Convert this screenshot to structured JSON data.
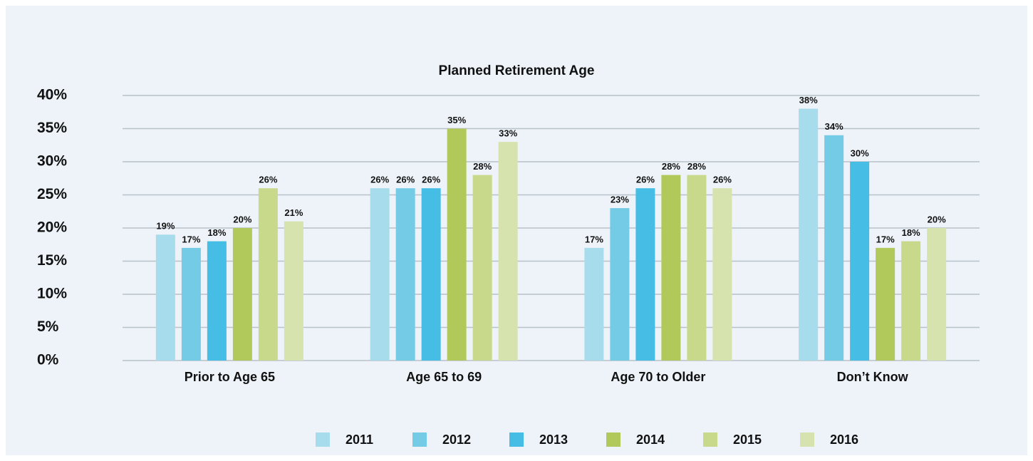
{
  "chart_data": {
    "type": "bar",
    "title": "Planned Retirement Age",
    "categories": [
      "Prior to Age 65",
      "Age 65 to 69",
      "Age 70 to Older",
      "Don’t Know"
    ],
    "series": [
      {
        "name": "2011",
        "color": "#a6dcec",
        "values": [
          19,
          26,
          17,
          38
        ],
        "value_labels": [
          "19%",
          "26%",
          "17%",
          "38%"
        ]
      },
      {
        "name": "2012",
        "color": "#74cbe6",
        "values": [
          17,
          26,
          23,
          34
        ],
        "value_labels": [
          "17%",
          "26%",
          "23%",
          "34%"
        ]
      },
      {
        "name": "2013",
        "color": "#45bde4",
        "values": [
          18,
          26,
          26,
          30
        ],
        "value_labels": [
          "18%",
          "26%",
          "26%",
          "30%"
        ]
      },
      {
        "name": "2014",
        "color": "#b1c95a",
        "values": [
          20,
          35,
          28,
          17
        ],
        "value_labels": [
          "20%",
          "35%",
          "28%",
          "17%"
        ]
      },
      {
        "name": "2015",
        "color": "#c9d98b",
        "values": [
          26,
          28,
          28,
          18
        ],
        "value_labels": [
          "26%",
          "28%",
          "28%",
          "18%"
        ]
      },
      {
        "name": "2016",
        "color": "#d7e3ae",
        "values": [
          21,
          33,
          26,
          20
        ],
        "value_labels": [
          "21%",
          "33%",
          "26%",
          "20%"
        ]
      }
    ],
    "ylim": [
      0,
      40
    ],
    "yticks": [
      {
        "value": 0,
        "label": "0%"
      },
      {
        "value": 5,
        "label": "5%"
      },
      {
        "value": 10,
        "label": "10%"
      },
      {
        "value": 15,
        "label": "15%"
      },
      {
        "value": 20,
        "label": "20%"
      },
      {
        "value": 25,
        "label": "25%"
      },
      {
        "value": 30,
        "label": "30%"
      },
      {
        "value": 35,
        "label": "35%"
      },
      {
        "value": 40,
        "label": "40%"
      }
    ],
    "grid": true,
    "legend": "bottom"
  }
}
